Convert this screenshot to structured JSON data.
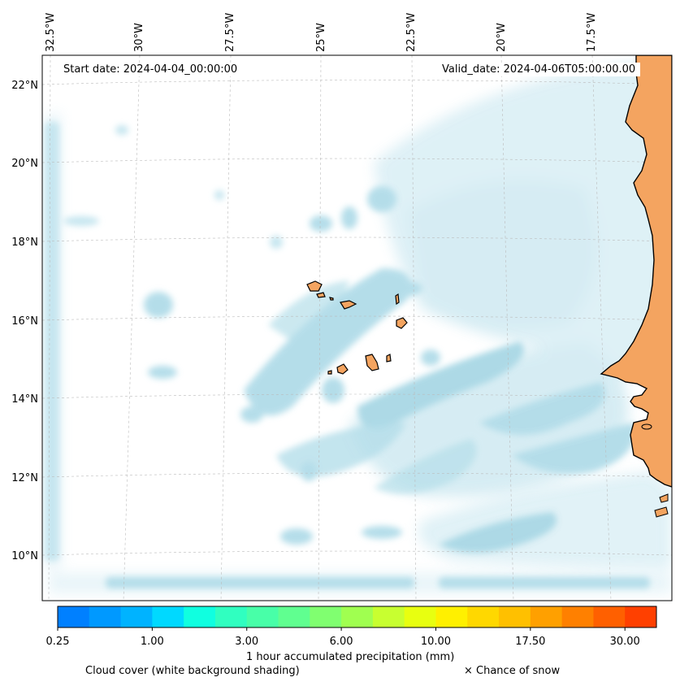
{
  "map": {
    "start_date": "Start date: 2024-04-04_00:00:00",
    "valid_date": "Valid_date: 2024-04-06T05:00:00.00",
    "longitude_labels": [
      "32.5°W",
      "30°W",
      "27.5°W",
      "25°W",
      "22.5°W",
      "20°W",
      "17.5°W"
    ],
    "latitude_labels": [
      "22°N",
      "20°N",
      "18°N",
      "16°N",
      "14°N",
      "12°N",
      "10°N"
    ],
    "land_color": "#f4a460",
    "cloud_color": "#a8d8e6",
    "gridline_style": "dashed"
  },
  "colorbar": {
    "label": "1 hour accumulated precipitation (mm)",
    "tick_labels": [
      "0.25",
      "1.00",
      "3.00",
      "6.00",
      "10.00",
      "17.50",
      "30.00"
    ],
    "colors": [
      "#0080ff",
      "#0099ff",
      "#00b3ff",
      "#00d9ff",
      "#10ffe0",
      "#30ffc0",
      "#48ffa8",
      "#60ff90",
      "#80ff70",
      "#a0ff50",
      "#c8ff30",
      "#e8ff10",
      "#fff000",
      "#ffd800",
      "#ffc000",
      "#ffa000",
      "#ff8000",
      "#ff6000",
      "#ff4000"
    ]
  },
  "footer": {
    "cloud_caption": "Cloud cover (white background shading)",
    "snow_caption": "× Chance of snow"
  }
}
